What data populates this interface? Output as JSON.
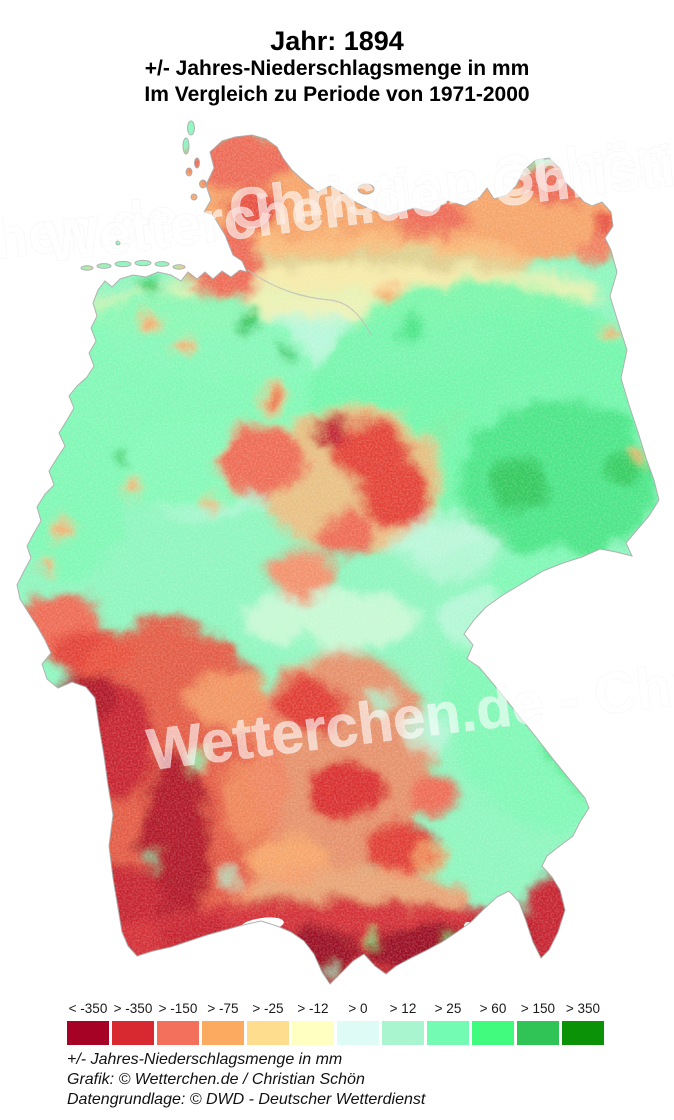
{
  "header": {
    "title": "Jahr: 1894",
    "subtitle_line1": "+/- Jahres-Niederschlagsmenge in mm",
    "subtitle_line2": "Im Vergleich zu Periode von 1971-2000"
  },
  "map": {
    "region": "Deutschland",
    "watermark": "Wetterchen.de - Christian Schön"
  },
  "legend": {
    "entries": [
      {
        "label": "< -350",
        "color": "#A50226"
      },
      {
        "label": "> -350",
        "color": "#D7292F"
      },
      {
        "label": "> -150",
        "color": "#F2705C"
      },
      {
        "label": "> -75",
        "color": "#FDAA61"
      },
      {
        "label": "> -25",
        "color": "#FEDD8E"
      },
      {
        "label": "> -12",
        "color": "#FFFFC2"
      },
      {
        "label": "> 0",
        "color": "#DFFBF5"
      },
      {
        "label": "> 12",
        "color": "#A9F5CF"
      },
      {
        "label": "> 25",
        "color": "#73FBB4"
      },
      {
        "label": "> 60",
        "color": "#40FB7D"
      },
      {
        "label": "> 150",
        "color": "#2FC455"
      },
      {
        "label": "> 350",
        "color": "#0B9207"
      }
    ]
  },
  "footer": {
    "line1": "+/- Jahres-Niederschlagsmenge in mm",
    "line2": "Grafik: © Wetterchen.de / Christian Schön",
    "line3": "Datengrundlage: © DWD - Deutscher Wetterdienst"
  },
  "chart_data": {
    "type": "heatmap",
    "subtype": "precipitation-anomaly-choropleth-map",
    "region": "Germany",
    "year": "1894",
    "unit": "mm",
    "comparison_period": "1971-2000",
    "classes": [
      "< -350",
      "> -350",
      "> -150",
      "> -75",
      "> -25",
      "> -12",
      "> 0",
      "> 12",
      "> 25",
      "> 60",
      "> 150",
      "> 350"
    ],
    "class_colors": [
      "#A50226",
      "#D7292F",
      "#F2705C",
      "#FDAA61",
      "#FEDD8E",
      "#FFFFC2",
      "#DFFBF5",
      "#A9F5CF",
      "#73FBB4",
      "#40FB7D",
      "#2FC455",
      "#0B9207"
    ],
    "legend_position": "bottom"
  }
}
